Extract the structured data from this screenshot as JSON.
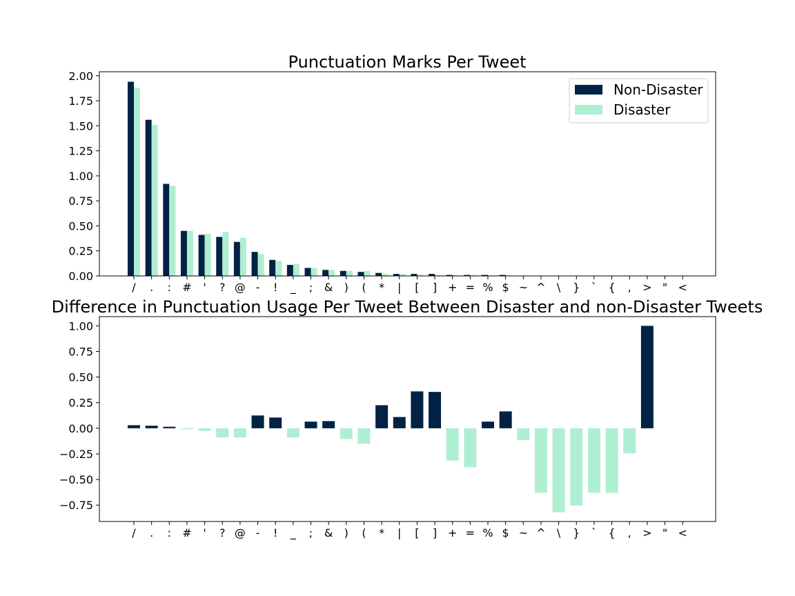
{
  "colors": {
    "non_disaster": "#002244",
    "disaster": "#aeefd2"
  },
  "chart_data": [
    {
      "type": "bar",
      "title": "Punctuation Marks Per Tweet",
      "xlabel": "",
      "ylabel": "",
      "categories": [
        "/",
        ".",
        ":",
        "#",
        "'",
        "?",
        "@",
        "-",
        "!",
        "_",
        ";",
        "&",
        ")",
        "(",
        "*",
        "|",
        "[",
        "]",
        "+",
        "=",
        "%",
        "$",
        "~",
        "^",
        "\\",
        "}",
        "`",
        "{",
        ",",
        ">",
        "\"",
        "<"
      ],
      "series": [
        {
          "name": "Non-Disaster",
          "values": [
            1.94,
            1.56,
            0.92,
            0.45,
            0.41,
            0.39,
            0.34,
            0.24,
            0.16,
            0.11,
            0.08,
            0.06,
            0.05,
            0.04,
            0.03,
            0.02,
            0.02,
            0.02,
            0.01,
            0.01,
            0.01,
            0.01,
            0.003,
            0.002,
            0.002,
            0.001,
            0.001,
            0.001,
            0.001,
            0.0005,
            0.0003,
            0.0002
          ]
        },
        {
          "name": "Disaster",
          "values": [
            1.88,
            1.51,
            0.9,
            0.45,
            0.42,
            0.44,
            0.38,
            0.22,
            0.15,
            0.12,
            0.08,
            0.06,
            0.05,
            0.05,
            0.02,
            0.02,
            0.01,
            0.01,
            0.01,
            0.01,
            0.005,
            0.005,
            0.003,
            0.002,
            0.002,
            0.001,
            0.001,
            0.001,
            0.001,
            0.0,
            0.0,
            0.0
          ]
        }
      ],
      "ylim": [
        0,
        2.04
      ],
      "yticks": [
        0.0,
        0.25,
        0.5,
        0.75,
        1.0,
        1.25,
        1.5,
        1.75,
        2.0
      ],
      "ytick_labels": [
        "0.00",
        "0.25",
        "0.50",
        "0.75",
        "1.00",
        "1.25",
        "1.50",
        "1.75",
        "2.00"
      ],
      "legend": "top-right",
      "grid": false
    },
    {
      "type": "bar",
      "title": "Difference in Punctuation Usage Per Tweet Between Disaster and non-Disaster Tweets",
      "xlabel": "",
      "ylabel": "",
      "categories": [
        "/",
        ".",
        ":",
        "#",
        "'",
        "?",
        "@",
        "-",
        "!",
        "_",
        ";",
        "&",
        ")",
        "(",
        "*",
        "|",
        "[",
        "]",
        "+",
        "=",
        "%",
        "$",
        "~",
        "^",
        "\\",
        "}",
        "`",
        "{",
        ",",
        ">",
        "\"",
        "<"
      ],
      "values": [
        0.03,
        0.025,
        0.015,
        -0.01,
        -0.025,
        -0.09,
        -0.09,
        0.125,
        0.105,
        -0.09,
        0.065,
        0.07,
        -0.105,
        -0.15,
        0.225,
        0.11,
        0.36,
        0.355,
        -0.315,
        -0.38,
        0.065,
        0.165,
        -0.115,
        -0.63,
        -0.82,
        -0.755,
        -0.63,
        -0.63,
        -0.245,
        1.0,
        0,
        0
      ],
      "ylim": [
        -0.91,
        1.09
      ],
      "yticks": [
        -0.75,
        -0.5,
        -0.25,
        0.0,
        0.25,
        0.5,
        0.75,
        1.0
      ],
      "ytick_labels": [
        "−0.75",
        "−0.50",
        "−0.25",
        "0.00",
        "0.25",
        "0.50",
        "0.75",
        "1.00"
      ],
      "grid": false
    }
  ]
}
